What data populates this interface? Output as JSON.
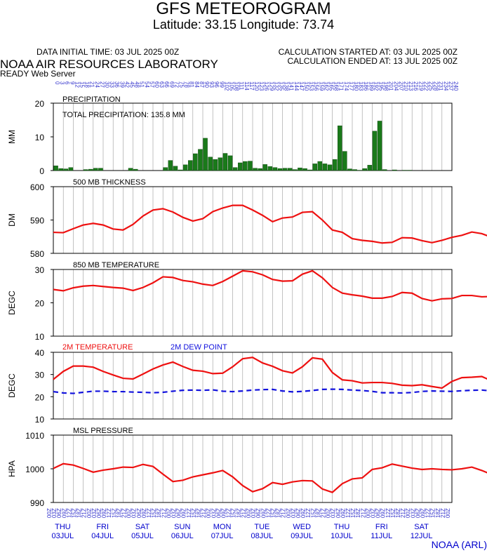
{
  "header": {
    "title": "GFS METEOROGRAM",
    "subtitle": "Latitude: 33.15 Longitude:  73.74",
    "init_time": "DATA INITIAL TIME: 03 JUL 2025 00Z",
    "calc_start": "CALCULATION STARTED AT: 03 JUL 2025 00Z",
    "calc_end": "CALCULATION ENDED AT: 13 JUL 2025 00Z",
    "lab": "NOAA AIR RESOURCES LABORATORY",
    "server": "READY Web Server",
    "credit": "NOAA (ARL)"
  },
  "colors": {
    "bar": "#1a7a1a",
    "line": "#ee1111",
    "dew": "#1111dd",
    "tick_label": "#3333cc",
    "grid": "#999999"
  },
  "chart_data": [
    {
      "type": "bar",
      "title": "PRECIPITATION",
      "annotation": "TOTAL PRECIPITATION: 135.8 MM",
      "ylabel": "MM",
      "ylim": [
        0,
        20
      ],
      "yticks": [
        0,
        10,
        20
      ],
      "x_step_hours": 3,
      "values": [
        1.4,
        0.6,
        0.5,
        0.9,
        0,
        0,
        0.3,
        0.4,
        0.7,
        0.7,
        0,
        0,
        0,
        0,
        0,
        0.7,
        0.4,
        0,
        0,
        0,
        0,
        0,
        0.9,
        3.0,
        1.3,
        0.2,
        1.7,
        3.0,
        5.0,
        6.3,
        9.6,
        4.0,
        3.3,
        3.8,
        5.1,
        4.4,
        0.9,
        2.3,
        2.7,
        2.8,
        0.7,
        0.6,
        1.8,
        1.2,
        0.9,
        0.6,
        0.7,
        0.7,
        0.3,
        0.8,
        0.6,
        0.2,
        2.0,
        2.7,
        2.0,
        1.7,
        3.3,
        13.3,
        5.7,
        0.5,
        0.3,
        0.1,
        0.6,
        1.6,
        11.7,
        14.7,
        0.3,
        0,
        0.2,
        0,
        0.1,
        0.1,
        0,
        0,
        0,
        0,
        0,
        0,
        0,
        0,
        0
      ]
    },
    {
      "type": "line",
      "title": "500 MB  THICKNESS",
      "ylabel": "DM",
      "ylim": [
        580,
        600
      ],
      "yticks": [
        580,
        590,
        600
      ],
      "x_step_hours": 6,
      "values": [
        586.3,
        586.2,
        587.4,
        588.5,
        589.0,
        588.5,
        587.3,
        587.0,
        588.7,
        591.2,
        593.0,
        593.4,
        592.4,
        590.8,
        589.7,
        590.4,
        592.5,
        593.6,
        594.4,
        594.4,
        593.0,
        591.4,
        589.5,
        590.6,
        590.9,
        592.3,
        592.5,
        590.0,
        587.0,
        586.3,
        584.4,
        583.9,
        583.6,
        583.1,
        583.3,
        584.7,
        584.6,
        583.8,
        583.2,
        583.9,
        584.8,
        585.4,
        586.4,
        585.9,
        584.8,
        583.9,
        583.7,
        583.7,
        585.0,
        586.0,
        586.2,
        585.7,
        584.1,
        582.2,
        579.9,
        580.6,
        580.8,
        582.5,
        583.5,
        583.0,
        582.7,
        580.6,
        580.3,
        580.9,
        582.2,
        583.6,
        583.3,
        582.5,
        582.0,
        581.8,
        581.7,
        583.0,
        585.2,
        586.5,
        586.4,
        585.4,
        585.0
      ]
    },
    {
      "type": "line",
      "title": "850 MB  TEMPERATURE",
      "ylabel": "DEGC",
      "ylim": [
        10,
        30
      ],
      "yticks": [
        10,
        20,
        30
      ],
      "x_step_hours": 6,
      "values": [
        24.0,
        23.6,
        24.5,
        25.0,
        25.2,
        24.9,
        24.6,
        24.4,
        23.7,
        24.6,
        26.0,
        27.8,
        27.6,
        26.7,
        26.3,
        25.6,
        25.2,
        26.4,
        28.0,
        29.6,
        29.3,
        28.4,
        27.0,
        26.5,
        26.6,
        28.6,
        29.6,
        27.5,
        24.6,
        22.9,
        22.4,
        22.0,
        21.4,
        21.4,
        21.9,
        23.1,
        22.9,
        21.3,
        20.6,
        21.2,
        21.3,
        22.2,
        22.2,
        21.8,
        21.9,
        21.7,
        21.7,
        21.2,
        20.8,
        21.7,
        22.1,
        22.7,
        23.0,
        21.5,
        19.6,
        19.5,
        19.4,
        20.4,
        21.2,
        21.4,
        22.9,
        20.0,
        21.6,
        20.9,
        21.1,
        22.0,
        22.4,
        22.3,
        22.1,
        22.2,
        22.6,
        22.3,
        23.4,
        25.3,
        26.1,
        25.3,
        24.9,
        24.5,
        24.0
      ]
    },
    {
      "type": "line",
      "title": "2M TEMPERATURE",
      "title2": "2M  DEW POINT",
      "ylabel": "DEGC",
      "ylim": [
        10,
        40
      ],
      "yticks": [
        10,
        20,
        30,
        40
      ],
      "x_step_hours": 6,
      "series": [
        {
          "name": "2M TEMPERATURE",
          "values": [
            27.8,
            31.4,
            33.8,
            33.8,
            33.3,
            31.4,
            29.8,
            28.3,
            28.0,
            30.2,
            32.5,
            34.3,
            35.6,
            33.6,
            31.9,
            31.5,
            30.4,
            30.6,
            33.5,
            37.1,
            37.7,
            35.2,
            33.7,
            31.7,
            30.7,
            33.5,
            37.5,
            36.9,
            30.9,
            27.6,
            27.2,
            26.2,
            26.4,
            26.4,
            26.0,
            25.2,
            25.0,
            25.4,
            24.6,
            23.9,
            26.9,
            28.6,
            28.8,
            29.1,
            27.1,
            26.0,
            25.1,
            24.6,
            25.7,
            28.6,
            30.6,
            30.2,
            27.4,
            27.3,
            24.5,
            23.7,
            26.5,
            29.8,
            30.1,
            28.1,
            27.1,
            24.5,
            23.1,
            25.2,
            29.6,
            31.3,
            31.4,
            28.4,
            27.3,
            26.8,
            26.4,
            28.4,
            31.6,
            34.0,
            34.5,
            32.0,
            30.6,
            29.6,
            28.8
          ]
        },
        {
          "name": "2M  DEW POINT",
          "values": [
            22.3,
            21.7,
            21.5,
            22.0,
            22.5,
            22.5,
            22.3,
            22.3,
            22.1,
            22.0,
            21.8,
            22.0,
            22.5,
            22.9,
            23.0,
            22.9,
            23.1,
            22.5,
            22.3,
            22.6,
            23.0,
            23.2,
            23.3,
            22.6,
            22.2,
            22.4,
            22.8,
            23.3,
            23.4,
            23.3,
            23.0,
            22.8,
            22.4,
            21.8,
            21.8,
            21.7,
            21.9,
            22.4,
            22.6,
            22.5,
            22.4,
            22.7,
            22.9,
            23.0,
            22.6,
            22.2,
            22.5,
            22.7,
            22.8,
            22.9,
            22.9,
            22.6,
            22.3,
            21.8,
            21.6,
            21.5,
            21.6,
            21.5,
            21.9,
            21.8,
            21.6,
            21.0,
            20.5,
            19.7,
            19.6,
            20.2,
            20.5,
            20.7,
            20.5,
            20.3,
            20.0,
            20.1,
            19.8,
            19.4,
            19.5,
            20.4,
            21.0,
            20.8,
            20.5
          ]
        }
      ]
    },
    {
      "type": "line",
      "title": "MSL PRESSURE",
      "ylabel": "HPA",
      "ylim": [
        990,
        1010
      ],
      "yticks": [
        990,
        1000,
        1010
      ],
      "x_step_hours": 6,
      "values": [
        1000.1,
        1001.5,
        1001.1,
        1000.1,
        999.0,
        999.6,
        1000.0,
        1000.5,
        1000.4,
        1001.3,
        1000.7,
        998.4,
        996.2,
        996.6,
        997.6,
        998.2,
        998.8,
        999.5,
        997.6,
        995.0,
        993.2,
        994.1,
        995.9,
        995.4,
        996.1,
        996.5,
        996.4,
        994.0,
        993.0,
        995.6,
        997.0,
        997.3,
        999.8,
        1000.3,
        1001.4,
        1000.8,
        1000.2,
        999.8,
        1000.0,
        999.8,
        999.7,
        1000.0,
        1000.5,
        999.5,
        998.3,
        999.5,
        1000.8,
        999.9,
        999.6,
        1000.3,
        999.2,
        997.8,
        997.4,
        998.7,
        999.6,
        998.6,
        999.6,
        1000.9,
        1001.5,
        999.6,
        998.8,
        999.6,
        999.3,
        999.4,
        1000.0,
        1001.2,
        1001.0,
        999.6,
        999.0,
        999.9,
        1001.0,
        1000.5,
        1000.0,
        1001.9,
        1002.0,
        1000.6,
        999.6,
        1001.0,
        1002.1,
        1000.6,
        1000.5
      ]
    }
  ],
  "x_axis": {
    "fhr_start": 0,
    "fhr_end": 240,
    "top_labels": [
      "0",
      "3",
      "6",
      "9",
      "12",
      "15",
      "18",
      "21",
      "24",
      "27",
      "30",
      "33",
      "36",
      "39",
      "42",
      "45",
      "48",
      "51",
      "54",
      "57",
      "60",
      "63",
      "66",
      "69",
      "72",
      "75",
      "78",
      "81",
      "84",
      "87",
      "90",
      "93",
      "96",
      "99",
      "102",
      "105",
      "108",
      "111",
      "114",
      "117",
      "120",
      "123",
      "126",
      "129",
      "132",
      "135",
      "138",
      "141",
      "144",
      "147",
      "150",
      "153",
      "156",
      "159",
      "162",
      "165",
      "168",
      "171",
      "174",
      "177",
      "180",
      "183",
      "186",
      "189",
      "192",
      "195",
      "198",
      "201",
      "204",
      "207",
      "210",
      "213",
      "216",
      "219",
      "222",
      "225",
      "228",
      "231",
      "234",
      "237",
      "240"
    ],
    "bottom_labels": [
      "00Z",
      "03Z",
      "06Z",
      "09Z",
      "12Z",
      "15Z",
      "18Z",
      "21Z",
      "00Z",
      "03Z",
      "06Z",
      "09Z",
      "12Z",
      "15Z",
      "18Z",
      "21Z",
      "00Z",
      "03Z",
      "06Z",
      "09Z",
      "12Z",
      "15Z",
      "18Z",
      "21Z",
      "00Z",
      "03Z",
      "06Z",
      "09Z",
      "12Z",
      "15Z",
      "18Z",
      "21Z",
      "00Z",
      "03Z",
      "06Z",
      "09Z",
      "12Z",
      "15Z",
      "18Z",
      "21Z",
      "00Z",
      "03Z",
      "06Z",
      "09Z",
      "12Z",
      "15Z",
      "18Z",
      "21Z",
      "00Z",
      "03Z",
      "06Z",
      "09Z",
      "12Z",
      "15Z",
      "18Z",
      "21Z",
      "00Z",
      "03Z",
      "06Z",
      "09Z",
      "12Z",
      "15Z",
      "18Z",
      "21Z",
      "00Z",
      "03Z",
      "06Z",
      "09Z",
      "12Z",
      "15Z",
      "18Z",
      "21Z",
      "00Z",
      "03Z",
      "06Z",
      "09Z",
      "12Z",
      "15Z",
      "18Z",
      "21Z",
      "00Z"
    ],
    "days": [
      {
        "day": "THU",
        "date": "03JUL"
      },
      {
        "day": "FRI",
        "date": "04JUL"
      },
      {
        "day": "SAT",
        "date": "05JUL"
      },
      {
        "day": "SUN",
        "date": "06JUL"
      },
      {
        "day": "MON",
        "date": "07JUL"
      },
      {
        "day": "TUE",
        "date": "08JUL"
      },
      {
        "day": "WED",
        "date": "09JUL"
      },
      {
        "day": "THU",
        "date": "10JUL"
      },
      {
        "day": "FRI",
        "date": "11JUL"
      },
      {
        "day": "SAT",
        "date": "12JUL"
      }
    ]
  }
}
